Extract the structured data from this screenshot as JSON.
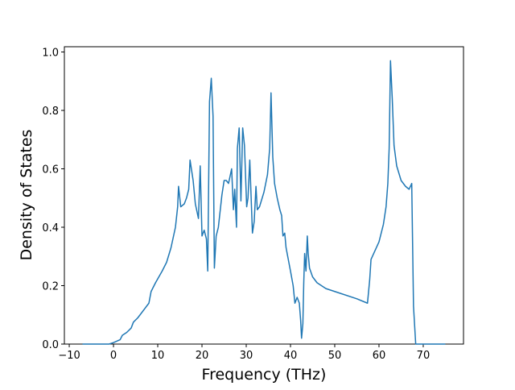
{
  "chart_data": {
    "type": "line",
    "xlabel": "Frequency (THz)",
    "ylabel": "Density of States",
    "color": "#1f77b4",
    "x": [
      -7,
      -1,
      0,
      1.5,
      2,
      3,
      4,
      4.5,
      5.5,
      7.5,
      8,
      8.5,
      9.5,
      11,
      12,
      13,
      14,
      14.5,
      14.7,
      15.2,
      16,
      16.5,
      17,
      17.3,
      18,
      18.5,
      19.2,
      19.6,
      20,
      20.5,
      21,
      21.3,
      21.7,
      22.1,
      22.5,
      22.8,
      23.2,
      23.7,
      24.5,
      25,
      25.5,
      26,
      26.7,
      27.1,
      27.4,
      27.8,
      28,
      28.4,
      28.8,
      29.2,
      29.6,
      30.1,
      30.4,
      30.8,
      31.4,
      31.8,
      32.2,
      32.5,
      33,
      34,
      34.8,
      35.3,
      35.6,
      36,
      36.4,
      37,
      37.6,
      38,
      38.3,
      38.7,
      39,
      40,
      40.6,
      41,
      41.5,
      42,
      42.3,
      42.5,
      42.8,
      43,
      43.2,
      43.5,
      43.8,
      44,
      44.3,
      45,
      46,
      48,
      50,
      55,
      57.4,
      57.9,
      58.2,
      60,
      61,
      61.6,
      62,
      62.3,
      62.6,
      63,
      63.4,
      64,
      65,
      66,
      66.8,
      67.4,
      67.8,
      68.3,
      75
    ],
    "values": [
      0,
      0,
      0.005,
      0.015,
      0.03,
      0.04,
      0.055,
      0.075,
      0.09,
      0.13,
      0.14,
      0.18,
      0.21,
      0.25,
      0.28,
      0.33,
      0.4,
      0.47,
      0.54,
      0.47,
      0.48,
      0.5,
      0.53,
      0.63,
      0.56,
      0.48,
      0.43,
      0.61,
      0.37,
      0.39,
      0.36,
      0.25,
      0.83,
      0.91,
      0.78,
      0.26,
      0.37,
      0.4,
      0.51,
      0.56,
      0.56,
      0.55,
      0.6,
      0.46,
      0.53,
      0.4,
      0.67,
      0.74,
      0.49,
      0.74,
      0.68,
      0.47,
      0.5,
      0.63,
      0.38,
      0.42,
      0.54,
      0.46,
      0.47,
      0.52,
      0.58,
      0.67,
      0.86,
      0.64,
      0.55,
      0.5,
      0.46,
      0.44,
      0.37,
      0.38,
      0.33,
      0.25,
      0.2,
      0.14,
      0.16,
      0.14,
      0.08,
      0.02,
      0.07,
      0.21,
      0.31,
      0.25,
      0.37,
      0.31,
      0.26,
      0.23,
      0.21,
      0.19,
      0.18,
      0.155,
      0.14,
      0.22,
      0.29,
      0.35,
      0.41,
      0.47,
      0.55,
      0.67,
      0.97,
      0.84,
      0.68,
      0.61,
      0.56,
      0.54,
      0.53,
      0.55,
      0.13,
      0,
      0
    ],
    "xlim": [
      -11.1,
      79.1
    ],
    "ylim": [
      0,
      1.018
    ],
    "xticks": [
      {
        "value": -10,
        "label": "−10"
      },
      0,
      10,
      20,
      30,
      40,
      50,
      60,
      70
    ],
    "yticks": [
      {
        "value": 0,
        "label": "0.0"
      },
      {
        "value": 0.2,
        "label": "0.2"
      },
      {
        "value": 0.4,
        "label": "0.4"
      },
      {
        "value": 0.6,
        "label": "0.6"
      },
      {
        "value": 0.8,
        "label": "0.8"
      },
      {
        "value": 1,
        "label": "1.0"
      }
    ]
  }
}
